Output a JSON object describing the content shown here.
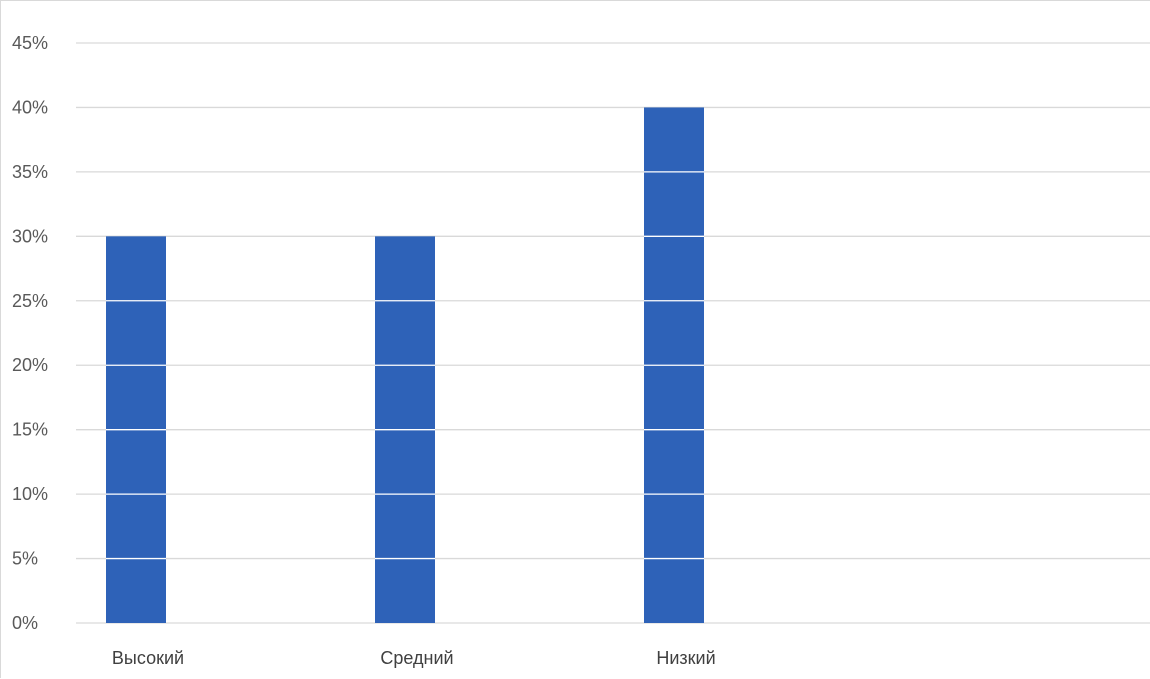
{
  "chart_data": {
    "type": "bar",
    "categories": [
      "Высокий",
      "Средний",
      "Низкий"
    ],
    "values": [
      30,
      30,
      40
    ],
    "ylim": [
      0,
      45
    ],
    "y_ticks": [
      0,
      5,
      10,
      15,
      20,
      25,
      30,
      35,
      40,
      45
    ],
    "y_tick_labels": [
      "0%",
      "5%",
      "10%",
      "15%",
      "20%",
      "25%",
      "30%",
      "35%",
      "40%",
      "45%"
    ],
    "unit": "%",
    "grid": true,
    "legend": "none",
    "bar_color": "#2e62b8",
    "title": "",
    "xlabel": "",
    "ylabel": ""
  }
}
